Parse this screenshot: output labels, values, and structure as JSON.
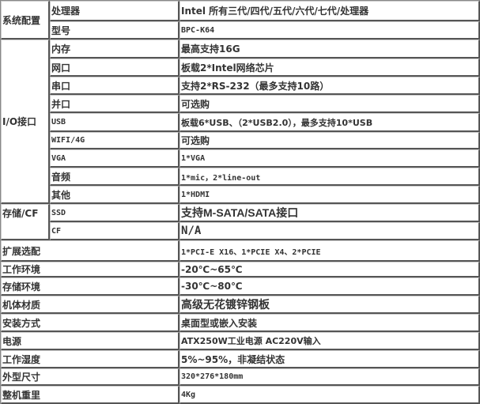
{
  "groups": {
    "system": "系统配置",
    "io": "I/O接口",
    "storage": "存储/CF"
  },
  "rows": [
    {
      "label": "处理器",
      "value": "Intel 所有三代/四代/五代/六代/七代/处理器"
    },
    {
      "label": "型号",
      "value": "BPC-K64"
    },
    {
      "label": "内存",
      "value": "最高支持16G"
    },
    {
      "label": "网口",
      "value": "板载2*Intel网络芯片"
    },
    {
      "label": "串口",
      "value": "支持2*RS-232（最多支持10路）"
    },
    {
      "label": "并口",
      "value": "可选购"
    },
    {
      "label": "USB",
      "value": "板载6*USB、（2*USB2.0），最多支持10*USB"
    },
    {
      "label": "WIFI/4G",
      "value": "可选购"
    },
    {
      "label": "VGA",
      "value": "1*VGA"
    },
    {
      "label": "音频",
      "value": "1*mic，2*line-out"
    },
    {
      "label": "其他",
      "value": "1*HDMI"
    },
    {
      "label": "SSD",
      "value": "支持M-SATA/SATA接口"
    },
    {
      "label": "CF",
      "value": "N/A"
    },
    {
      "label": "扩展选配",
      "value": "1*PCI-E X16、1*PCIE X4、2*PCIE"
    },
    {
      "label": "工作环境",
      "value": "-20℃~65℃"
    },
    {
      "label": "存储环境",
      "value": "-30℃~80℃"
    },
    {
      "label": "机体材质",
      "value": "高级无花镀锌钢板"
    },
    {
      "label": "安装方式",
      "value": "桌面型或嵌入安装"
    },
    {
      "label": "电源",
      "value": "ATX250W工业电源 AC220V输入"
    },
    {
      "label": "工作湿度",
      "value": "5%~95%，非凝结状态"
    },
    {
      "label": "外型尺寸",
      "value": "320*276*180mm"
    },
    {
      "label": "整机重里",
      "value": "4Kg"
    }
  ]
}
